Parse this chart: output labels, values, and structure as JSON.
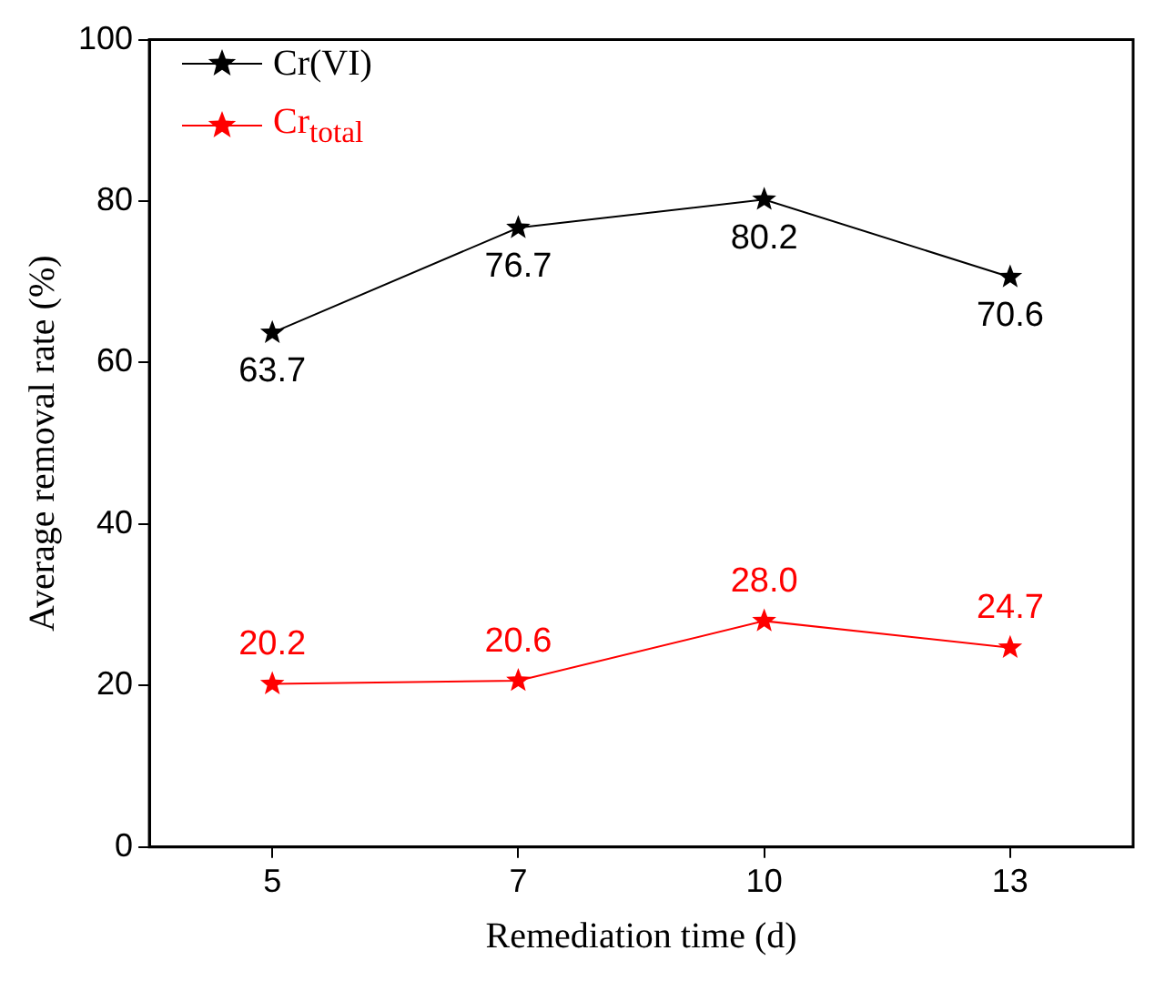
{
  "chart_data": {
    "type": "line",
    "xlabel": "Remediation time (d)",
    "ylabel": "Average removal rate (%)",
    "categories": [
      "5",
      "7",
      "10",
      "13"
    ],
    "series": [
      {
        "name": "Cr(VI)",
        "color": "#000000",
        "values": [
          63.7,
          76.7,
          80.2,
          70.6
        ],
        "value_labels": [
          "63.7",
          "76.7",
          "80.2",
          "70.6"
        ]
      },
      {
        "name": "Cr$_{total}$",
        "color": "#ff0000",
        "values": [
          20.2,
          20.6,
          28.0,
          24.7
        ],
        "value_labels": [
          "20.2",
          "20.6",
          "28.0",
          "24.7"
        ]
      }
    ],
    "ylim": [
      0,
      100
    ],
    "yticks": [
      0,
      20,
      40,
      60,
      80,
      100
    ],
    "grid": false,
    "legend": "top left",
    "marker": "star"
  }
}
